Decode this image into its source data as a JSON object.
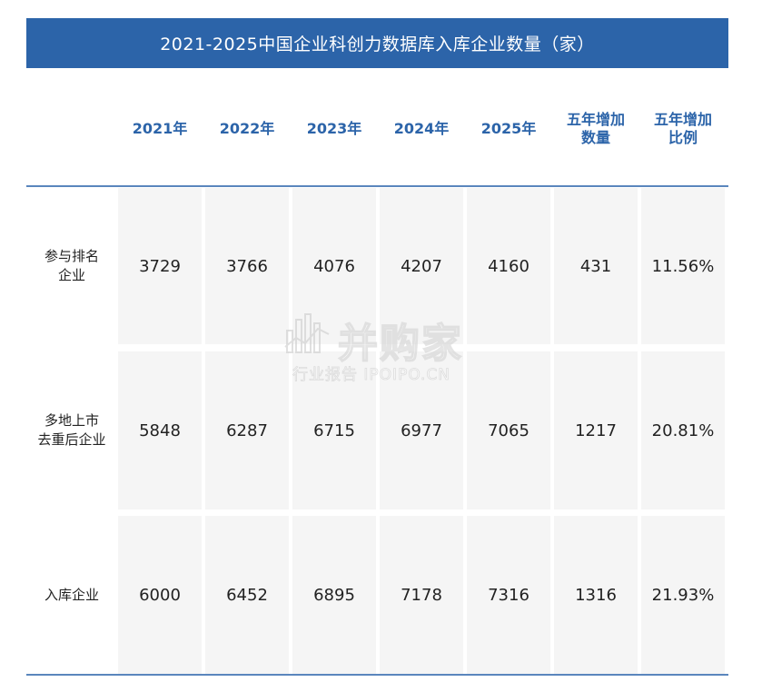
{
  "title": "2021-2025中国企业科创力数据库入库企业数量（家）",
  "chart_data": {
    "type": "table",
    "columns": [
      "2021年",
      "2022年",
      "2023年",
      "2024年",
      "2025年",
      "五年增加数量",
      "五年增加比例"
    ],
    "column_lines": [
      [
        "2021年"
      ],
      [
        "2022年"
      ],
      [
        "2023年"
      ],
      [
        "2024年"
      ],
      [
        "2025年"
      ],
      [
        "五年增加",
        "数量"
      ],
      [
        "五年增加",
        "比例"
      ]
    ],
    "rows": [
      {
        "label_lines": [
          "参与排名",
          "企业"
        ],
        "label": "参与排名企业",
        "values": [
          "3729",
          "3766",
          "4076",
          "4207",
          "4160",
          "431",
          "11.56%"
        ]
      },
      {
        "label_lines": [
          "多地上市",
          "去重后企业"
        ],
        "label": "多地上市去重后企业",
        "values": [
          "5848",
          "6287",
          "6715",
          "6977",
          "7065",
          "1217",
          "20.81%"
        ]
      },
      {
        "label_lines": [
          "入库企业"
        ],
        "label": "入库企业",
        "values": [
          "6000",
          "6452",
          "6895",
          "7178",
          "7316",
          "1316",
          "21.93%"
        ]
      }
    ]
  },
  "watermark": {
    "brand": "并购家",
    "tagline": "行业报告 IPOIPO.CN"
  },
  "colors": {
    "title_bg": "#2c64a9",
    "header_text": "#2c64a9",
    "cell_bg": "#f5f5f5",
    "rule": "#5a86bd"
  }
}
